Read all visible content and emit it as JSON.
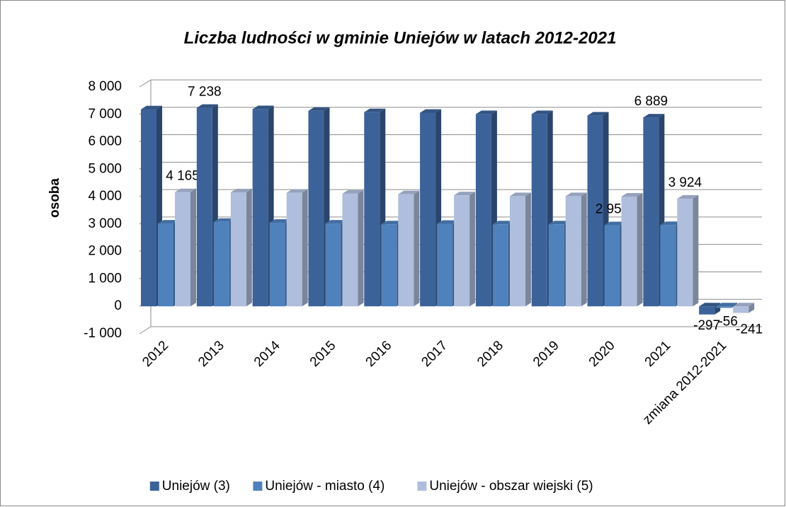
{
  "chart_data": {
    "type": "bar3d",
    "title": "Liczba ludności w gminie Uniejów w latach 2012-2021",
    "y_label": "osoba",
    "categories": [
      "2012",
      "2013",
      "2014",
      "2015",
      "2016",
      "2017",
      "2018",
      "2019",
      "2020",
      "2021",
      "zmiana 2012-2021"
    ],
    "series": [
      {
        "name": "Uniejów (3)",
        "color": "#3c6399",
        "values": [
          7186,
          7238,
          7190,
          7130,
          7080,
          7060,
          7010,
          7010,
          6960,
          6889,
          -297
        ],
        "value_labels": [
          null,
          "7 238",
          null,
          null,
          null,
          null,
          null,
          null,
          null,
          "6 889",
          "-297"
        ]
      },
      {
        "name": "Uniejów - miasto (4)",
        "color": "#4f81bd",
        "values": [
          3021,
          3080,
          3050,
          3020,
          2990,
          3010,
          2990,
          2990,
          2957,
          2965,
          -56
        ],
        "value_labels": [
          null,
          null,
          null,
          null,
          null,
          null,
          null,
          null,
          "2 957",
          null,
          "-56"
        ]
      },
      {
        "name": "Uniejów - obszar wiejski (5)",
        "color": "#b0bedd",
        "values": [
          4165,
          4158,
          4140,
          4110,
          4090,
          4050,
          4020,
          4020,
          4003,
          3924,
          -241
        ],
        "value_labels": [
          "4 165",
          null,
          null,
          null,
          null,
          null,
          null,
          null,
          null,
          "3 924",
          "-241"
        ]
      }
    ],
    "ylim": [
      -1000,
      8000
    ],
    "yticks": [
      {
        "value": -1000,
        "label": "-1 000"
      },
      0,
      {
        "value": 1000,
        "label": "1 000"
      },
      {
        "value": 2000,
        "label": "2 000"
      },
      {
        "value": 3000,
        "label": "3 000"
      },
      {
        "value": 4000,
        "label": "4 000"
      },
      {
        "value": 5000,
        "label": "5 000"
      },
      {
        "value": 6000,
        "label": "6 000"
      },
      {
        "value": 7000,
        "label": "7 000"
      },
      {
        "value": 8000,
        "label": "8 000"
      }
    ],
    "grid": true,
    "legend": "bottom"
  }
}
